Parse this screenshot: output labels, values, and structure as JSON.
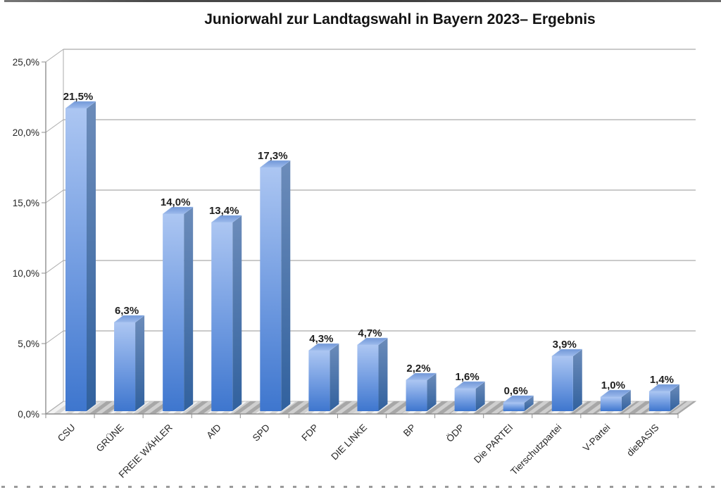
{
  "chart_data": {
    "type": "bar",
    "style": "3d-column",
    "title": "Juniorwahl zur Landtagswahl in Bayern 2023– Ergebnis",
    "xlabel": "",
    "ylabel": "",
    "categories": [
      "CSU",
      "GRÜNE",
      "FREIE WÄHLER",
      "AfD",
      "SPD",
      "FDP",
      "DIE LINKE",
      "BP",
      "ÖDP",
      "Die PARTEI",
      "Tierschutzpartei",
      "V-Partei",
      "dieBASIS"
    ],
    "values": [
      21.5,
      6.3,
      14.0,
      13.4,
      17.3,
      4.3,
      4.7,
      2.2,
      1.6,
      0.6,
      3.9,
      1.0,
      1.4
    ],
    "value_labels": [
      "21,5%",
      "6,3%",
      "14,0%",
      "13,4%",
      "17,3%",
      "4,3%",
      "4,7%",
      "2,2%",
      "1,6%",
      "0,6%",
      "3,9%",
      "1,0%",
      "1,4%"
    ],
    "ylim": [
      0,
      25
    ],
    "ytick_step": 5,
    "ytick_labels": [
      "0,0%",
      "5,0%",
      "10,0%",
      "15,0%",
      "20,0%",
      "25,0%"
    ],
    "grid": true,
    "legend": false,
    "colors": {
      "bar_front_top": "#ACC6F2",
      "bar_front_mid": "#6F9AE0",
      "bar_front_bottom": "#3E76CE",
      "bar_side_top": "#6C8CBA",
      "bar_side_bottom": "#31619E",
      "bar_top_light": "#9CBAEC",
      "bar_top_dark": "#7298D8",
      "gridline": "#ABABAB",
      "axis": "#8E8E8E",
      "tick_label_text": "#262626",
      "value_label_text": "#1F1F1F",
      "title_text": "#121212",
      "floor_light": "#F3F3F3",
      "floor_stripe": "#D9D9D9",
      "shadow_bg": "#C6C6C6",
      "shadow_stripe": "#9A9A9A"
    }
  }
}
